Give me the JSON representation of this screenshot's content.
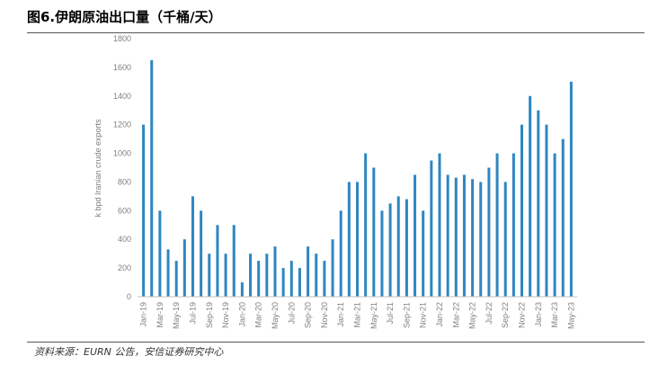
{
  "figure": {
    "title": "图6.伊朗原油出口量（千桶/天）",
    "source": "资料来源：EURN 公告，安信证券研究中心"
  },
  "chart_data": {
    "type": "bar",
    "ylabel": "k bpd Iranian crude exports",
    "ylim": [
      0,
      1800
    ],
    "yticks": [
      0,
      200,
      400,
      600,
      800,
      1000,
      1200,
      1400,
      1600,
      1800
    ],
    "bar_color": "#2e86c1",
    "grid": false,
    "x_tick_labels": [
      "Jan-19",
      "Mar-19",
      "May-19",
      "Jul-19",
      "Sep-19",
      "Nov-19",
      "Jan-20",
      "Mar-20",
      "May-20",
      "Jul-20",
      "Sep-20",
      "Nov-20",
      "Jan-21",
      "Mar-21",
      "May-21",
      "Jul-21",
      "Sep-21",
      "Nov-21",
      "Jan-22",
      "Mar-22",
      "May-22",
      "Jul-22",
      "Sep-22",
      "Nov-22",
      "Jan-23",
      "Mar-23",
      "May-23"
    ],
    "categories": [
      "Jan-19",
      "Feb-19",
      "Mar-19",
      "Apr-19",
      "May-19",
      "Jun-19",
      "Jul-19",
      "Aug-19",
      "Sep-19",
      "Oct-19",
      "Nov-19",
      "Dec-19",
      "Jan-20",
      "Feb-20",
      "Mar-20",
      "Apr-20",
      "May-20",
      "Jun-20",
      "Jul-20",
      "Aug-20",
      "Sep-20",
      "Oct-20",
      "Nov-20",
      "Dec-20",
      "Jan-21",
      "Feb-21",
      "Mar-21",
      "Apr-21",
      "May-21",
      "Jun-21",
      "Jul-21",
      "Aug-21",
      "Sep-21",
      "Oct-21",
      "Nov-21",
      "Dec-21",
      "Jan-22",
      "Feb-22",
      "Mar-22",
      "Apr-22",
      "May-22",
      "Jun-22",
      "Jul-22",
      "Aug-22",
      "Sep-22",
      "Oct-22",
      "Nov-22",
      "Dec-22",
      "Jan-23",
      "Feb-23",
      "Mar-23",
      "Apr-23",
      "May-23"
    ],
    "values": [
      1200,
      1650,
      600,
      330,
      250,
      400,
      700,
      600,
      300,
      500,
      300,
      500,
      100,
      300,
      250,
      300,
      350,
      200,
      250,
      200,
      350,
      300,
      250,
      400,
      600,
      800,
      800,
      1000,
      900,
      600,
      650,
      700,
      680,
      850,
      600,
      950,
      1000,
      850,
      830,
      850,
      820,
      800,
      900,
      1000,
      800,
      1000,
      1200,
      1400,
      1300,
      1200,
      1000,
      1100,
      1500
    ]
  }
}
